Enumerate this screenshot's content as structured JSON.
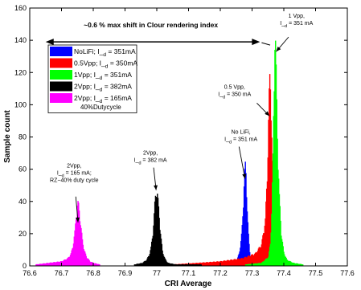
{
  "chart_data": {
    "type": "bar",
    "title": "",
    "xlabel": "CRI Average",
    "ylabel": "Sample count",
    "xlim": [
      76.6,
      77.6
    ],
    "ylim": [
      0,
      160
    ],
    "x_ticks": [
      "76.6",
      "76.7",
      "76.8",
      "76.9",
      "77",
      "77.1",
      "77.2",
      "77.3",
      "77.4",
      "77.5",
      "77.6"
    ],
    "y_ticks": [
      "0",
      "20",
      "40",
      "60",
      "80",
      "100",
      "120",
      "140",
      "160"
    ],
    "grid": false,
    "legend_position": "upper-left",
    "series": [
      {
        "name": "NoLiFi; I_d = 351mA",
        "color": "#0000ff",
        "points": [
          [
            77.247,
            2
          ],
          [
            77.253,
            4
          ],
          [
            77.259,
            8
          ],
          [
            77.264,
            14
          ],
          [
            77.268,
            22
          ],
          [
            77.271,
            34
          ],
          [
            77.274,
            48
          ],
          [
            77.276,
            58
          ],
          [
            77.278,
            64
          ],
          [
            77.28,
            66
          ],
          [
            77.282,
            56
          ],
          [
            77.284,
            44
          ],
          [
            77.286,
            32
          ],
          [
            77.289,
            20
          ],
          [
            77.292,
            11
          ],
          [
            77.296,
            5
          ],
          [
            77.301,
            2
          ]
        ]
      },
      {
        "name": "0.5Vpp; I_d = 350mA",
        "color": "#ff0000",
        "points": [
          [
            77.05,
            1
          ],
          [
            77.13,
            2
          ],
          [
            77.2,
            3
          ],
          [
            77.27,
            5
          ],
          [
            77.31,
            8
          ],
          [
            77.33,
            14
          ],
          [
            77.342,
            30
          ],
          [
            77.348,
            60
          ],
          [
            77.352,
            95
          ],
          [
            77.355,
            118
          ],
          [
            77.357,
            124
          ],
          [
            77.36,
            110
          ],
          [
            77.363,
            75
          ],
          [
            77.367,
            40
          ],
          [
            77.372,
            16
          ],
          [
            77.38,
            6
          ],
          [
            77.4,
            3
          ],
          [
            77.44,
            1
          ]
        ]
      },
      {
        "name": "1Vpp; I_d = 351mA",
        "color": "#00ff00",
        "points": [
          [
            77.28,
            1
          ],
          [
            77.33,
            2
          ],
          [
            77.352,
            6
          ],
          [
            77.358,
            15
          ],
          [
            77.362,
            35
          ],
          [
            77.366,
            70
          ],
          [
            77.369,
            112
          ],
          [
            77.371,
            140
          ],
          [
            77.372,
            152
          ],
          [
            77.374,
            145
          ],
          [
            77.377,
            115
          ],
          [
            77.381,
            78
          ],
          [
            77.386,
            45
          ],
          [
            77.392,
            22
          ],
          [
            77.4,
            9
          ],
          [
            77.41,
            4
          ],
          [
            77.43,
            2
          ],
          [
            77.46,
            1
          ]
        ]
      },
      {
        "name": "2Vpp; I_d = 382mA",
        "color": "#000000",
        "points": [
          [
            76.93,
            1
          ],
          [
            76.955,
            2
          ],
          [
            76.968,
            4
          ],
          [
            76.976,
            7
          ],
          [
            76.982,
            12
          ],
          [
            76.987,
            20
          ],
          [
            76.991,
            30
          ],
          [
            76.994,
            40
          ],
          [
            76.997,
            48
          ],
          [
            76.999,
            50
          ],
          [
            77.002,
            47
          ],
          [
            77.005,
            40
          ],
          [
            77.009,
            30
          ],
          [
            77.013,
            19
          ],
          [
            77.018,
            10
          ],
          [
            77.025,
            5
          ],
          [
            77.035,
            2
          ],
          [
            77.06,
            1
          ],
          [
            77.14,
            1
          ]
        ]
      },
      {
        "name": "2Vpp; I_d = 165mA",
        "name_line2": "40%Dutycycle",
        "color": "#ff00ff",
        "points": [
          [
            76.62,
            1
          ],
          [
            76.66,
            2
          ],
          [
            76.7,
            3
          ],
          [
            76.72,
            5
          ],
          [
            76.73,
            8
          ],
          [
            76.737,
            14
          ],
          [
            76.742,
            22
          ],
          [
            76.746,
            32
          ],
          [
            76.75,
            40
          ],
          [
            76.753,
            41
          ],
          [
            76.757,
            35
          ],
          [
            76.761,
            26
          ],
          [
            76.766,
            17
          ],
          [
            76.772,
            10
          ],
          [
            76.779,
            6
          ],
          [
            76.79,
            3
          ],
          [
            76.8,
            2
          ],
          [
            76.82,
            1
          ]
        ]
      }
    ],
    "annotations": [
      {
        "text": "~0.6 % max shift in Clour rendering index",
        "bold": true,
        "x": 76.77,
        "y": 148
      },
      {
        "lines": [
          "1 Vpp,",
          "I_d = 351 mA"
        ],
        "x": 77.44,
        "y": 154
      },
      {
        "lines": [
          "0.5 Vpp,",
          "I_d = 350 mA"
        ],
        "x": 77.245,
        "y": 110
      },
      {
        "lines": [
          "No LiFi,",
          "I_d = 351 mA"
        ],
        "x": 77.265,
        "y": 82
      },
      {
        "lines": [
          "2Vpp,",
          "I_d = 382 mA"
        ],
        "x": 76.98,
        "y": 69
      },
      {
        "lines": [
          "2Vpp,",
          "I_d = 165 mA;",
          "RZ−40% duty cycle"
        ],
        "x": 76.74,
        "y": 61
      }
    ]
  }
}
